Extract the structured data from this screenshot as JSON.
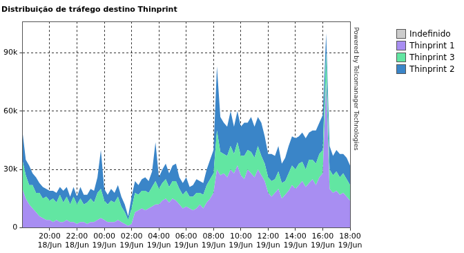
{
  "chart_data": {
    "type": "area",
    "title": "Distribuição de tráfego destino Thinprint",
    "annotations": [
      "Powered by Telcomanager Technologies"
    ],
    "stacked": true,
    "grid": true,
    "legend": "right",
    "categories": [
      null,
      null,
      null,
      null,
      null,
      null,
      null,
      null,
      [
        "20:00",
        "18/Jun"
      ],
      null,
      null,
      null,
      null,
      null,
      null,
      null,
      [
        "22:00",
        "18/Jun"
      ],
      null,
      null,
      null,
      null,
      null,
      null,
      null,
      [
        "00:00",
        "19/Jun"
      ],
      null,
      null,
      null,
      null,
      null,
      null,
      null,
      [
        "02:00",
        "19/Jun"
      ],
      null,
      null,
      null,
      null,
      null,
      null,
      null,
      [
        "04:00",
        "19/Jun"
      ],
      null,
      null,
      null,
      null,
      null,
      null,
      null,
      [
        "06:00",
        "19/Jun"
      ],
      null,
      null,
      null,
      null,
      null,
      null,
      null,
      [
        "08:00",
        "19/Jun"
      ],
      null,
      null,
      null,
      null,
      null,
      null,
      null,
      [
        "10:00",
        "19/Jun"
      ],
      null,
      null,
      null,
      null,
      null,
      null,
      null,
      [
        "12:00",
        "19/Jun"
      ],
      null,
      null,
      null,
      null,
      null,
      null,
      null,
      [
        "14:00",
        "19/Jun"
      ],
      null,
      null,
      null,
      null,
      null,
      null,
      null,
      [
        "16:00",
        "19/Jun"
      ],
      null,
      null,
      null,
      null,
      null,
      null,
      null,
      [
        "18:00",
        "19/Jun"
      ]
    ],
    "ylim": [
      0,
      106000
    ],
    "yticks": [
      0,
      {
        "value": 30000,
        "label": "30k"
      },
      {
        "value": 60000,
        "label": "60k"
      },
      {
        "value": 90000,
        "label": "90k"
      }
    ],
    "series": [
      {
        "name": "Indefinido",
        "color": "#cccccc",
        "values": [
          0,
          0,
          0,
          0,
          0,
          0,
          0,
          0,
          0,
          0,
          0,
          0,
          0,
          0,
          0,
          0,
          0,
          0,
          0,
          0,
          0,
          0,
          0,
          0,
          0,
          0,
          0,
          0,
          0,
          0,
          0,
          0,
          0,
          0,
          0,
          0,
          0,
          0,
          0,
          0,
          0,
          0,
          0,
          0,
          0,
          0,
          0,
          0,
          0,
          0,
          0,
          0,
          0,
          0,
          0,
          0,
          0,
          0,
          0,
          0,
          0,
          0,
          0,
          0,
          0,
          0,
          0,
          0,
          0,
          0,
          0,
          0,
          0,
          0,
          0,
          0,
          0,
          0,
          0,
          0,
          0,
          0,
          0,
          0,
          0,
          0,
          0,
          0,
          0,
          0,
          0,
          0,
          0,
          0,
          0,
          0,
          0
        ]
      },
      {
        "name": "Thinprint 1",
        "color": "#a88ef2",
        "values": [
          20000,
          15000,
          12000,
          10000,
          8000,
          6000,
          5000,
          4000,
          4000,
          3000,
          4000,
          3000,
          3000,
          4000,
          3000,
          3000,
          2000,
          3000,
          3000,
          2000,
          3000,
          3000,
          4000,
          5000,
          4000,
          3000,
          3000,
          3000,
          4000,
          3000,
          2000,
          1000,
          2000,
          8000,
          9000,
          10000,
          9000,
          10000,
          11000,
          12000,
          12000,
          14000,
          15000,
          13000,
          15000,
          14000,
          12000,
          10000,
          11000,
          10000,
          9000,
          10000,
          12000,
          10000,
          13000,
          15000,
          18000,
          30000,
          27000,
          28000,
          26000,
          30000,
          28000,
          32000,
          27000,
          25000,
          30000,
          28000,
          26000,
          30000,
          27000,
          24000,
          18000,
          16000,
          18000,
          20000,
          15000,
          17000,
          19000,
          22000,
          20000,
          22000,
          24000,
          21000,
          23000,
          25000,
          22000,
          26000,
          28000,
          75000,
          20000,
          18000,
          19000,
          17000,
          18000,
          16000,
          14000
        ]
      },
      {
        "name": "Thinprint 3",
        "color": "#62e6a2",
        "values": [
          15000,
          12000,
          10000,
          12000,
          10000,
          12000,
          10000,
          12000,
          10000,
          12000,
          9000,
          14000,
          10000,
          12000,
          9000,
          13000,
          10000,
          12000,
          9000,
          11000,
          12000,
          10000,
          14000,
          15000,
          10000,
          9000,
          11000,
          10000,
          12000,
          8000,
          6000,
          3000,
          8000,
          10000,
          8000,
          9000,
          10000,
          8000,
          10000,
          12000,
          8000,
          9000,
          10000,
          8000,
          9000,
          10000,
          8000,
          7000,
          8000,
          6000,
          7000,
          8000,
          6000,
          7000,
          9000,
          10000,
          10000,
          20000,
          12000,
          10000,
          11000,
          12000,
          10000,
          12000,
          10000,
          12000,
          10000,
          11000,
          10000,
          12000,
          10000,
          9000,
          8000,
          8000,
          7000,
          9000,
          8000,
          7000,
          9000,
          10000,
          10000,
          11000,
          10000,
          9000,
          12000,
          10000,
          11000,
          12000,
          12000,
          15000,
          10000,
          9000,
          10000,
          9000,
          10000,
          9000,
          8000
        ]
      },
      {
        "name": "Thinprint 2",
        "color": "#3a85c8",
        "values": [
          15000,
          8000,
          10000,
          6000,
          8000,
          5000,
          6000,
          4000,
          5000,
          4000,
          5000,
          4000,
          6000,
          5000,
          4000,
          5000,
          4000,
          6000,
          5000,
          4000,
          5000,
          6000,
          8000,
          20000,
          6000,
          5000,
          6000,
          5000,
          6000,
          5000,
          4000,
          2000,
          6000,
          6000,
          5000,
          6000,
          7000,
          6000,
          8000,
          20000,
          6000,
          7000,
          8000,
          7000,
          8000,
          9000,
          6000,
          6000,
          7000,
          5000,
          6000,
          7000,
          6000,
          6000,
          8000,
          10000,
          12000,
          33000,
          18000,
          16000,
          15000,
          18000,
          14000,
          16000,
          15000,
          17000,
          14000,
          18000,
          16000,
          15000,
          17000,
          14000,
          12000,
          14000,
          12000,
          13000,
          10000,
          12000,
          14000,
          15000,
          16000,
          14000,
          15000,
          16000,
          14000,
          15000,
          17000,
          16000,
          18000,
          10000,
          12000,
          10000,
          11000,
          12000,
          10000,
          11000,
          10000
        ]
      }
    ]
  }
}
